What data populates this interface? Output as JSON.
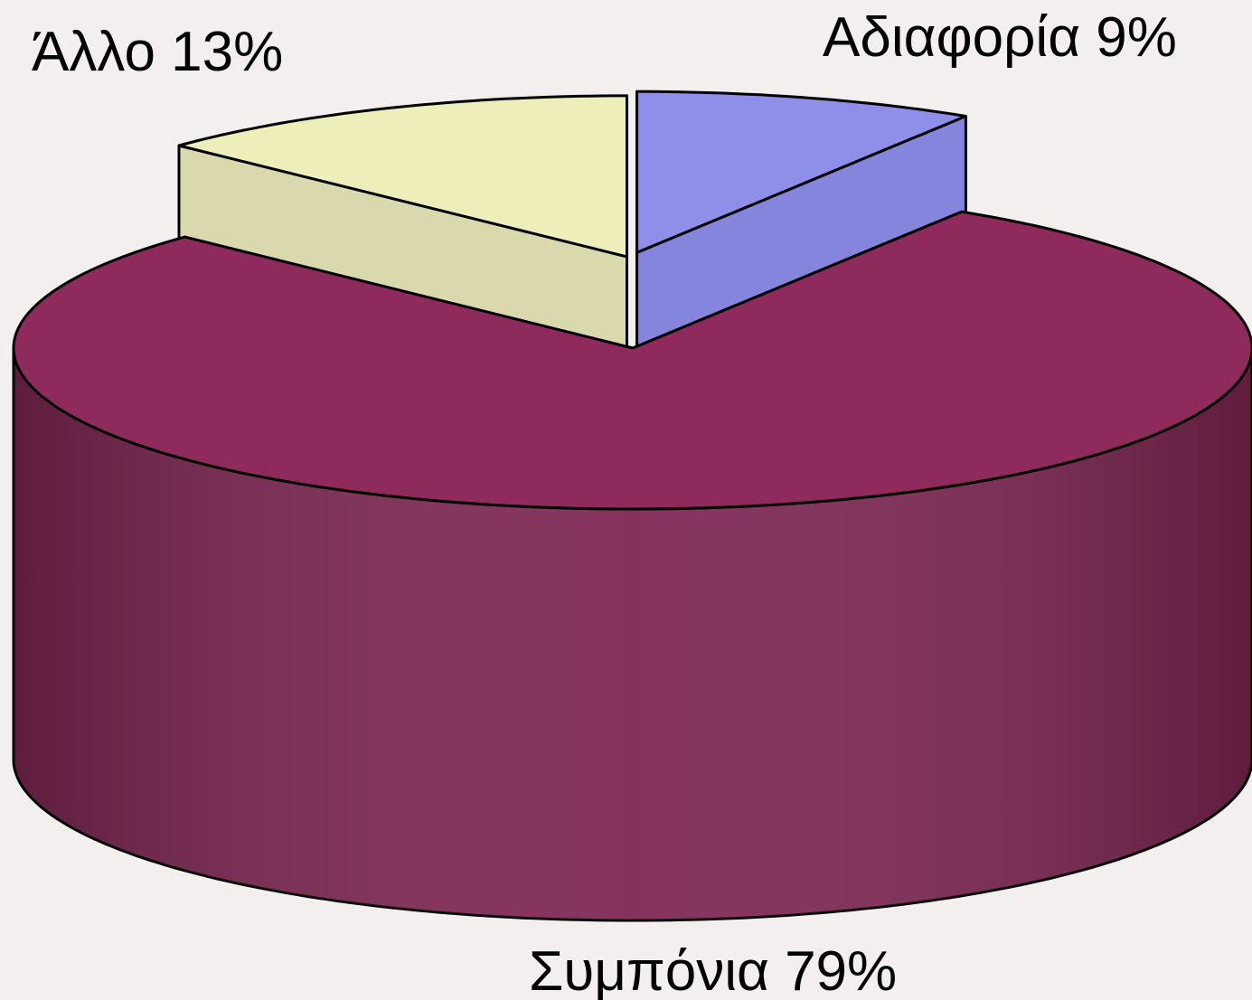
{
  "chart_data": {
    "type": "pie3d",
    "categories": [
      "Αδιαφορία",
      "Συμπόνια",
      "Άλλο"
    ],
    "values": [
      9,
      79,
      13
    ],
    "value_labels": [
      "9%",
      "79%",
      "13%"
    ],
    "colors": [
      "#8f8fea",
      "#8e2b5c",
      "#eeeebb"
    ],
    "side_colors": [
      "#8585dd",
      "#7e2652",
      "#d9d9ad"
    ]
  }
}
